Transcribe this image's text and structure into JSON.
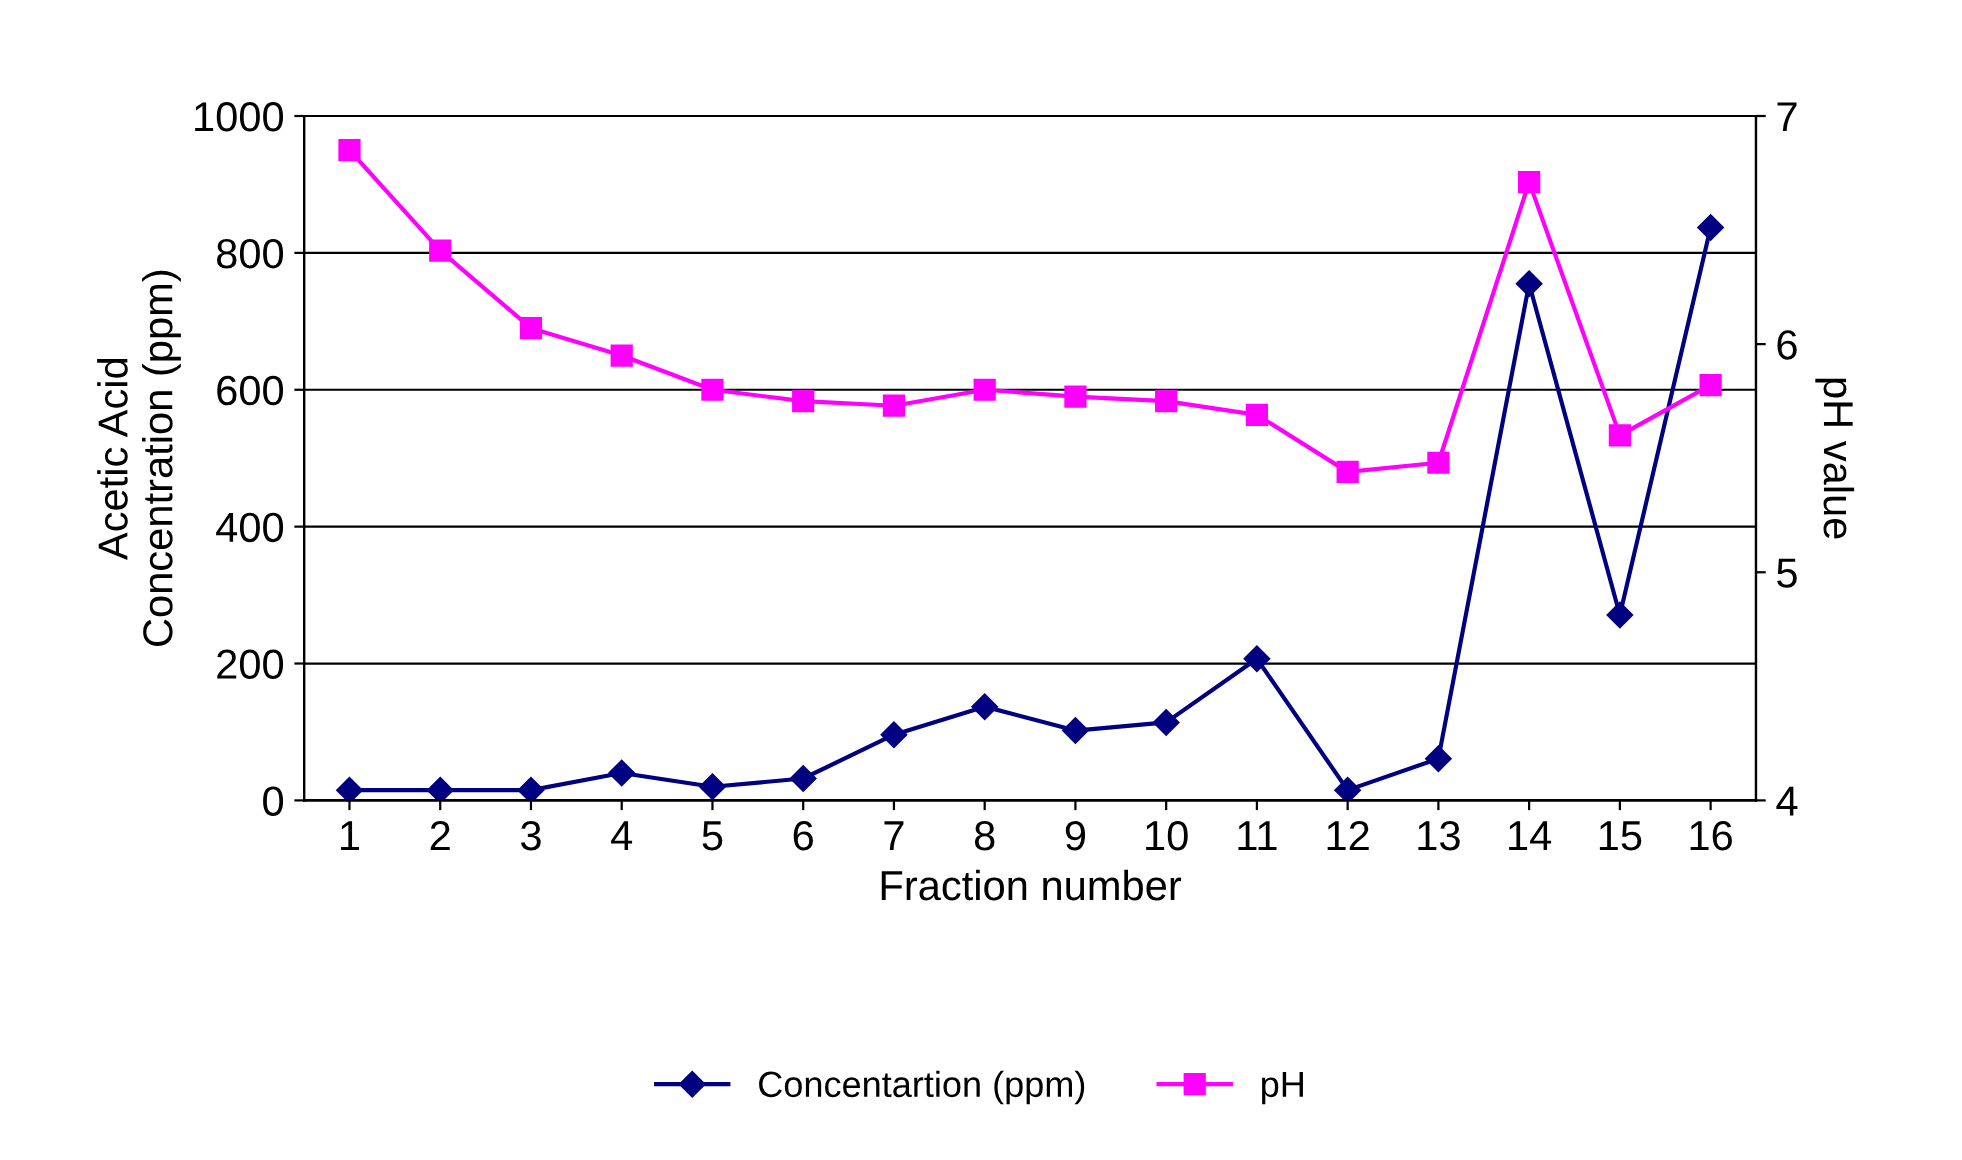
{
  "chart_data": {
    "type": "line",
    "xlabel": "Fraction number",
    "ylabel": "Acetic Acid\nConcentration (ppm)",
    "y2label": "pH value",
    "categories": [
      "1",
      "2",
      "3",
      "4",
      "5",
      "6",
      "7",
      "8",
      "9",
      "10",
      "11",
      "12",
      "13",
      "14",
      "15",
      "16"
    ],
    "series": [
      {
        "name": "Concentartion (ppm)",
        "color": "#000080",
        "marker": "diamond",
        "values": [
          15,
          15,
          15,
          40,
          20,
          32,
          96,
          137,
          102,
          114,
          207,
          15,
          61,
          755,
          271,
          837
        ]
      },
      {
        "name": "pH",
        "color": "#ff00ff",
        "marker": "square",
        "axis": "y2",
        "values": [
          6.85,
          6.41,
          6.07,
          5.95,
          5.8,
          5.75,
          5.73,
          5.8,
          5.77,
          5.75,
          5.69,
          5.44,
          5.48,
          6.71,
          5.6,
          5.82
        ]
      }
    ],
    "ylim": [
      0,
      1000
    ],
    "yticks": [
      0,
      200,
      400,
      600,
      800,
      1000
    ],
    "y2lim": [
      4,
      7
    ],
    "y2ticks": [
      4,
      5,
      6,
      7
    ],
    "grid": "y",
    "legend": "bottom",
    "line_style": "solid"
  }
}
